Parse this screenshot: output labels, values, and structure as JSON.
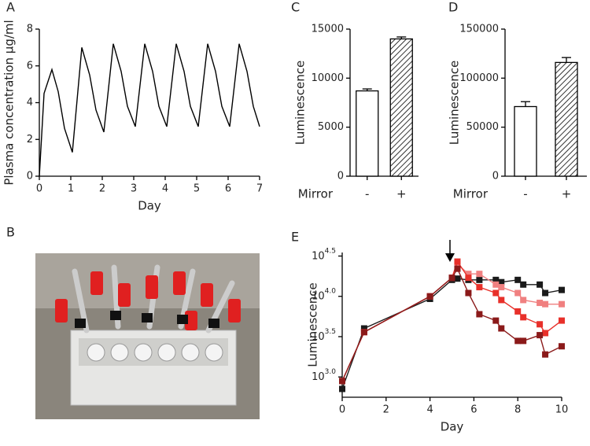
{
  "chart_data": [
    {
      "panel": "A",
      "type": "line",
      "x_label": "Day",
      "y_label": "Plasma concentration µg/ml",
      "x": [
        0,
        0.15,
        0.4,
        0.6,
        0.8,
        1.05,
        1.35,
        1.6,
        1.8,
        2.05,
        2.35,
        2.6,
        2.8,
        3.05,
        3.35,
        3.6,
        3.8,
        4.05,
        4.35,
        4.6,
        4.8,
        5.05,
        5.35,
        5.6,
        5.8,
        6.05,
        6.35,
        6.6,
        6.8,
        7.0
      ],
      "values": [
        0,
        4.5,
        5.8,
        4.6,
        2.6,
        1.3,
        7.0,
        5.5,
        3.6,
        2.4,
        7.2,
        5.7,
        3.8,
        2.7,
        7.2,
        5.7,
        3.8,
        2.7,
        7.2,
        5.7,
        3.8,
        2.7,
        7.2,
        5.7,
        3.8,
        2.7,
        7.2,
        5.7,
        3.8,
        2.7
      ],
      "color": "#000000",
      "xlim": [
        0,
        7
      ],
      "xticks": [
        0,
        1,
        2,
        3,
        4,
        5,
        6,
        7
      ],
      "ylim": [
        0,
        8
      ],
      "yticks": [
        0,
        2,
        4,
        6,
        8
      ]
    },
    {
      "panel": "B",
      "type": "image"
    },
    {
      "panel": "C",
      "type": "bar",
      "x_label": "Mirror",
      "y_label": "Luminescence",
      "categories": [
        "-",
        "+"
      ],
      "values": [
        8700,
        14000
      ],
      "errors": [
        200,
        200
      ],
      "hatch": [
        false,
        true
      ],
      "ylim": [
        0,
        15000
      ],
      "yticks": [
        0,
        5000,
        10000,
        15000
      ]
    },
    {
      "panel": "D",
      "type": "bar",
      "x_label": "Mirror",
      "y_label": "Luminescence",
      "categories": [
        "-",
        "+"
      ],
      "values": [
        71000,
        116000
      ],
      "errors": [
        5000,
        5000
      ],
      "hatch": [
        false,
        true
      ],
      "ylim": [
        0,
        150000
      ],
      "yticks": [
        0,
        50000,
        100000,
        150000
      ]
    },
    {
      "panel": "E",
      "type": "line",
      "x_label": "Day",
      "y_label": "Luminescence",
      "log_y": true,
      "markers": true,
      "x": [
        0,
        1,
        4,
        5,
        5.25,
        5.75,
        6.25,
        7,
        7.25,
        8,
        8.25,
        9,
        9.25,
        10
      ],
      "series": [
        {
          "color": "#1a1a1a",
          "values": [
            710,
            4000,
            9300,
            16000,
            16600,
            16000,
            16000,
            16000,
            15000,
            16000,
            14000,
            14000,
            11000,
            12000
          ]
        },
        {
          "color": "#f08080",
          "values": [
            890,
            3600,
            10000,
            17000,
            25000,
            19000,
            19000,
            14000,
            13000,
            11000,
            9000,
            8300,
            8000,
            8000
          ]
        },
        {
          "color": "#e8302a",
          "values": [
            890,
            3600,
            10000,
            17000,
            27000,
            17000,
            13000,
            11000,
            9000,
            6500,
            5500,
            4500,
            3500,
            5000
          ]
        },
        {
          "color": "#8b1a1a",
          "values": [
            890,
            3600,
            10000,
            17000,
            22000,
            11000,
            6000,
            5000,
            4000,
            2800,
            2800,
            3300,
            1900,
            2400
          ]
        }
      ],
      "xlim": [
        0,
        10
      ],
      "xticks": [
        0,
        2,
        4,
        6,
        8,
        10
      ],
      "ylim": [
        560,
        35000
      ],
      "yticks": [
        {
          "value": 1000,
          "label": "10",
          "exponent": "3.0"
        },
        {
          "value": 3162,
          "label": "10",
          "exponent": "3.5"
        },
        {
          "value": 10000,
          "label": "10",
          "exponent": "4.0"
        },
        {
          "value": 31623,
          "label": "10",
          "exponent": "4.5"
        }
      ]
    }
  ]
}
